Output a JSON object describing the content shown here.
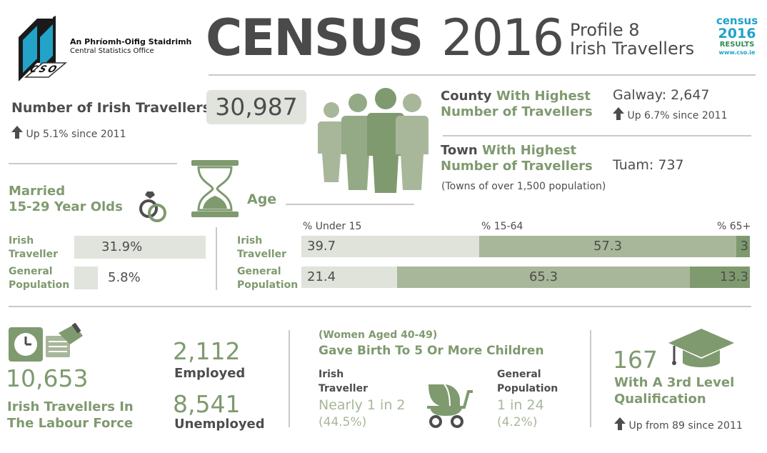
{
  "header": {
    "org_irish": "An Phríomh-Oifig Staidrimh",
    "org_english": "Central Statistics Office",
    "logo_text": "CSO",
    "title_census": "CENSUS",
    "title_year": "2016",
    "profile_line1": "Profile 8",
    "profile_line2": "Irish Travellers",
    "badge_census": "census",
    "badge_year": "2016",
    "badge_results": "RESULTS",
    "badge_url": "www.cso.ie"
  },
  "number": {
    "label": "Number of Irish Travellers",
    "value": "30,987",
    "change": "Up 5.1% since 2011"
  },
  "county": {
    "label_dark": "County",
    "label_green1": "With Highest",
    "label_green2": "Number of  Travellers",
    "value": "Galway: 2,647",
    "change": "Up 6.7% since 2011"
  },
  "town": {
    "label_dark": "Town",
    "label_green1": "With Highest",
    "label_green2": "Number of Travellers",
    "value": "Tuam: 737",
    "note": "(Towns of over 1,500 population)"
  },
  "married": {
    "title_line1": "Married",
    "title_line2": "15-29 Year Olds",
    "rows": [
      {
        "label1": "Irish",
        "label2": "Traveller",
        "value_text": "31.9%",
        "value": 31.9
      },
      {
        "label1": "General",
        "label2": "Population",
        "value_text": "5.8%",
        "value": 5.8
      }
    ]
  },
  "age": {
    "title": "Age",
    "col_headers": [
      "% Under 15",
      "% 15-64",
      "% 65+"
    ],
    "rows": [
      {
        "label1": "Irish",
        "label2": "Traveller",
        "segments": [
          {
            "value": 39.7,
            "text": "39.7"
          },
          {
            "value": 57.3,
            "text": "57.3"
          },
          {
            "value": 3,
            "text": "3"
          }
        ]
      },
      {
        "label1": "General",
        "label2": "Population",
        "segments": [
          {
            "value": 21.4,
            "text": "21.4"
          },
          {
            "value": 65.3,
            "text": "65.3"
          },
          {
            "value": 13.3,
            "text": "13.3"
          }
        ]
      }
    ],
    "colors": [
      "#dfe3da",
      "#a8b79a",
      "#7f9a6f"
    ]
  },
  "labour": {
    "value": "10,653",
    "label_line1": "Irish Travellers In",
    "label_line2": "The Labour Force",
    "employed_value": "2,112",
    "employed_label": "Employed",
    "unemployed_value": "8,541",
    "unemployed_label": "Unemployed"
  },
  "birth": {
    "subtitle": "(Women Aged 40-49)",
    "title": "Gave Birth To 5 Or More Children",
    "traveller_label1": "Irish",
    "traveller_label2": "Traveller",
    "traveller_value": "Nearly 1 in 2",
    "traveller_pct": "(44.5%)",
    "general_label1": "General",
    "general_label2": "Population",
    "general_value": "1 in 24",
    "general_pct": "(4.2%)"
  },
  "education": {
    "value": "167",
    "label_line1": "With A 3rd Level",
    "label_line2": "Qualification",
    "change": "Up from 89 since 2011"
  },
  "colors": {
    "green": "#7f9a6f",
    "dark_text": "#4d4d4d",
    "light_bar": "#e1e3dd",
    "badge_blue": "#1fa3c9",
    "badge_green": "#2e8b57"
  },
  "icons": [
    "cso-logo-icon",
    "people-icon",
    "rings-icon",
    "hourglass-icon",
    "timeclock-icon",
    "pram-icon",
    "graduation-cap-icon",
    "up-arrow-icon"
  ]
}
